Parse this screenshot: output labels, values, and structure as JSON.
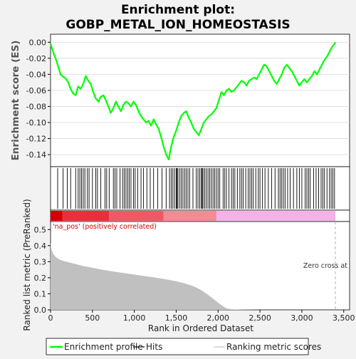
{
  "chart_data": {
    "type": "line",
    "title": "Enrichment plot:\nGOBP_METAL_ION_HOMEOSTASIS",
    "title_lines": [
      "Enrichment plot:",
      "GOBP_METAL_ION_HOMEOSTASIS"
    ],
    "colors": {
      "es_line": "#00ff00",
      "hits": "#000000",
      "ranked_fill": "#c0c0c0",
      "pos_red": "#d40000",
      "neg_pink": "#f4b2e8",
      "panel_bg": "#ffffff",
      "figure_bg": "#f2f2f2",
      "zero_cross_line": "#b0b0b0",
      "na_pos_text": "#e00000"
    },
    "panels": {
      "es": {
        "ylabel": "Enrichment score (ES)",
        "ylim": [
          -0.155,
          0.01
        ],
        "yticks": [
          0.0,
          -0.02,
          -0.04,
          -0.06,
          -0.08,
          -0.1,
          -0.12,
          -0.14
        ],
        "ytick_labels": [
          "0.00",
          "-0.02",
          "-0.04",
          "-0.06",
          "-0.08",
          "-0.10",
          "-0.12",
          "-0.14"
        ],
        "series": [
          {
            "name": "Enrichment profile",
            "x": [
              0,
              30,
              60,
              90,
              120,
              150,
              180,
              210,
              240,
              270,
              300,
              330,
              360,
              390,
              420,
              450,
              480,
              510,
              540,
              570,
              600,
              630,
              660,
              690,
              720,
              750,
              780,
              810,
              840,
              870,
              900,
              930,
              960,
              990,
              1020,
              1050,
              1080,
              1110,
              1140,
              1170,
              1200,
              1230,
              1260,
              1290,
              1320,
              1350,
              1380,
              1410,
              1440,
              1470,
              1500,
              1530,
              1560,
              1590,
              1620,
              1650,
              1680,
              1710,
              1740,
              1770,
              1800,
              1830,
              1860,
              1890,
              1920,
              1950,
              1980,
              2010,
              2040,
              2070,
              2100,
              2130,
              2160,
              2190,
              2220,
              2250,
              2280,
              2310,
              2340,
              2370,
              2400,
              2430,
              2460,
              2490,
              2520,
              2550,
              2580,
              2610,
              2640,
              2670,
              2700,
              2730,
              2760,
              2790,
              2820,
              2850,
              2880,
              2910,
              2940,
              2970,
              3000,
              3030,
              3060,
              3090,
              3120,
              3150,
              3180,
              3210,
              3240,
              3270,
              3300,
              3330,
              3360,
              3390,
              3400
            ],
            "y": [
              -0.002,
              -0.012,
              -0.02,
              -0.03,
              -0.04,
              -0.043,
              -0.045,
              -0.05,
              -0.058,
              -0.064,
              -0.066,
              -0.055,
              -0.058,
              -0.052,
              -0.042,
              -0.048,
              -0.052,
              -0.062,
              -0.07,
              -0.074,
              -0.068,
              -0.066,
              -0.072,
              -0.08,
              -0.088,
              -0.082,
              -0.074,
              -0.08,
              -0.086,
              -0.078,
              -0.074,
              -0.076,
              -0.08,
              -0.074,
              -0.078,
              -0.086,
              -0.092,
              -0.096,
              -0.1,
              -0.098,
              -0.104,
              -0.096,
              -0.102,
              -0.108,
              -0.118,
              -0.13,
              -0.14,
              -0.146,
              -0.13,
              -0.118,
              -0.11,
              -0.1,
              -0.092,
              -0.088,
              -0.086,
              -0.094,
              -0.1,
              -0.108,
              -0.112,
              -0.116,
              -0.108,
              -0.1,
              -0.096,
              -0.092,
              -0.09,
              -0.086,
              -0.082,
              -0.072,
              -0.062,
              -0.066,
              -0.06,
              -0.058,
              -0.062,
              -0.06,
              -0.056,
              -0.052,
              -0.048,
              -0.05,
              -0.054,
              -0.048,
              -0.046,
              -0.044,
              -0.046,
              -0.04,
              -0.034,
              -0.028,
              -0.03,
              -0.036,
              -0.042,
              -0.048,
              -0.052,
              -0.046,
              -0.04,
              -0.032,
              -0.028,
              -0.032,
              -0.036,
              -0.042,
              -0.048,
              -0.054,
              -0.05,
              -0.046,
              -0.05,
              -0.046,
              -0.042,
              -0.036,
              -0.04,
              -0.034,
              -0.028,
              -0.022,
              -0.018,
              -0.012,
              -0.006,
              -0.002,
              0.0
            ]
          }
        ]
      },
      "hits": {
        "positions": [
          85,
          150,
          200,
          240,
          300,
          330,
          350,
          370,
          390,
          410,
          440,
          460,
          500,
          540,
          560,
          600,
          650,
          670,
          700,
          750,
          770,
          790,
          830,
          860,
          880,
          900,
          920,
          940,
          960,
          990,
          1010,
          1040,
          1080,
          1110,
          1150,
          1190,
          1230,
          1280,
          1330,
          1380,
          1420,
          1440,
          1460,
          1480,
          1500,
          1510,
          1520,
          1540,
          1560,
          1580,
          1600,
          1620,
          1640,
          1660,
          1700,
          1740,
          1760,
          1780,
          1800,
          1810,
          1820,
          1840,
          1860,
          1880,
          1900,
          1920,
          1940,
          1960,
          1980,
          2000,
          2020,
          2060,
          2080,
          2100,
          2130,
          2160,
          2180,
          2200,
          2230,
          2260,
          2280,
          2300,
          2330,
          2360,
          2380,
          2400,
          2420,
          2450,
          2480,
          2500,
          2530,
          2560,
          2600,
          2640,
          2680,
          2720,
          2740,
          2760,
          2780,
          2800,
          2830,
          2860,
          2900,
          2940,
          2970,
          3000,
          3040,
          3060,
          3080,
          3100,
          3140,
          3170,
          3200,
          3230,
          3250,
          3270,
          3300,
          3330,
          3350,
          3370,
          3390
        ]
      },
      "ranked": {
        "ylabel": "Ranked list metric (PreRanked)",
        "xlabel": "Rank in Ordered Dataset",
        "xlim": [
          0,
          3570
        ],
        "ylim": [
          0,
          0.55
        ],
        "yticks": [
          0.0,
          0.1,
          0.2,
          0.3,
          0.4,
          0.5
        ],
        "ytick_labels": [
          "0.0",
          "0.1",
          "0.2",
          "0.3",
          "0.4",
          "0.5"
        ],
        "xticks": [
          0,
          500,
          1000,
          1500,
          2000,
          2500,
          3000,
          3500
        ],
        "xtick_labels": [
          "0",
          "500",
          "1,000",
          "1,500",
          "2,000",
          "2,500",
          "3,000",
          "3,500"
        ],
        "metric_x": [
          0,
          10,
          30,
          60,
          100,
          150,
          200,
          300,
          400,
          500,
          600,
          700,
          800,
          900,
          1000,
          1100,
          1200,
          1300,
          1400,
          1500,
          1600,
          1700,
          1750,
          1800,
          1850,
          1900,
          1950,
          2000,
          2050,
          2100,
          2150,
          2200,
          2300,
          2500,
          3000,
          3400
        ],
        "metric_y": [
          0.42,
          0.38,
          0.35,
          0.33,
          0.315,
          0.305,
          0.298,
          0.285,
          0.272,
          0.262,
          0.252,
          0.243,
          0.235,
          0.227,
          0.22,
          0.212,
          0.205,
          0.197,
          0.188,
          0.178,
          0.165,
          0.148,
          0.136,
          0.122,
          0.105,
          0.085,
          0.065,
          0.045,
          0.025,
          0.01,
          0.004,
          0.002,
          0.001,
          0.0,
          0.0,
          0.0
        ],
        "na_pos_label": "'na_pos' (positively correlated)",
        "zero_cross_label": "Zero cross at",
        "zero_cross_x": 3400,
        "color_bar": {
          "pos_end": 1980,
          "segments": [
            {
              "from": 0,
              "to": 140,
              "shade": "#d40000"
            },
            {
              "from": 140,
              "to": 700,
              "shade": "#e8303a"
            },
            {
              "from": 700,
              "to": 1350,
              "shade": "#ee5a64"
            },
            {
              "from": 1350,
              "to": 1980,
              "shade": "#f38a94"
            },
            {
              "from": 1980,
              "to": 3400,
              "shade": "#f4b2e8"
            }
          ]
        }
      }
    },
    "legend": {
      "placement": "bottom",
      "items": [
        {
          "label": "Enrichment profile",
          "color": "#00ff00",
          "style": "line-thick"
        },
        {
          "label": "Hits",
          "color": "#000000",
          "style": "line-thin"
        },
        {
          "label": "Ranking metric scores",
          "color": "#c0c0c0",
          "style": "line-thin"
        }
      ]
    }
  }
}
